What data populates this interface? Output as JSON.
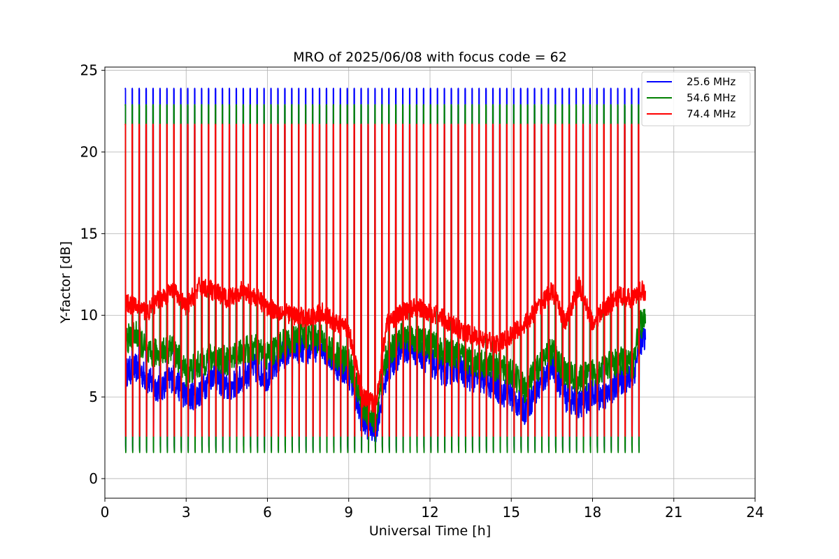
{
  "chart_data": {
    "type": "line",
    "title": "MRO of 2025/06/08 with focus code = 62",
    "xlabel": "Universal Time [h]",
    "ylabel": "Y-factor [dB]",
    "xlim": [
      0,
      24
    ],
    "ylim": [
      -1.2,
      25.2
    ],
    "xticks": [
      0,
      3,
      6,
      9,
      12,
      15,
      18,
      21,
      24
    ],
    "yticks": [
      0,
      5,
      10,
      15,
      20,
      25
    ],
    "grid": true,
    "legend_position": "top-right",
    "cycle_period_h": 0.256,
    "cycle_count": 75,
    "start_h": 0.75,
    "series": [
      {
        "name": "25.6 MHz",
        "color": "#0000ff",
        "peak": 23.9,
        "trough": 1.7,
        "baseline": [
          [
            0.75,
            6.5
          ],
          [
            1.2,
            6.8
          ],
          [
            1.6,
            6.0
          ],
          [
            2.0,
            5.5
          ],
          [
            2.5,
            6.2
          ],
          [
            3.0,
            5.0
          ],
          [
            3.5,
            5.2
          ],
          [
            4.0,
            6.5
          ],
          [
            4.5,
            5.5
          ],
          [
            5.0,
            6.0
          ],
          [
            5.5,
            6.8
          ],
          [
            6.0,
            6.2
          ],
          [
            6.5,
            7.5
          ],
          [
            7.0,
            8.0
          ],
          [
            7.5,
            7.8
          ],
          [
            8.0,
            8.2
          ],
          [
            8.5,
            7.0
          ],
          [
            9.0,
            6.5
          ],
          [
            9.5,
            3.5
          ],
          [
            10.0,
            3.0
          ],
          [
            10.4,
            6.5
          ],
          [
            11.0,
            8.0
          ],
          [
            11.5,
            7.8
          ],
          [
            12.0,
            7.2
          ],
          [
            12.5,
            6.5
          ],
          [
            13.0,
            6.8
          ],
          [
            13.5,
            6.2
          ],
          [
            14.0,
            6.0
          ],
          [
            14.5,
            5.5
          ],
          [
            15.0,
            5.0
          ],
          [
            15.5,
            4.2
          ],
          [
            16.0,
            5.5
          ],
          [
            16.5,
            7.0
          ],
          [
            17.0,
            5.0
          ],
          [
            17.5,
            4.5
          ],
          [
            18.0,
            5.2
          ],
          [
            18.5,
            5.0
          ],
          [
            19.0,
            6.0
          ],
          [
            19.5,
            6.2
          ],
          [
            19.75,
            8.5
          ]
        ]
      },
      {
        "name": "54.6 MHz",
        "color": "#008000",
        "peak": 22.9,
        "trough": 1.6,
        "baseline": [
          [
            0.75,
            8.5
          ],
          [
            1.2,
            8.8
          ],
          [
            1.6,
            7.5
          ],
          [
            2.0,
            7.8
          ],
          [
            2.5,
            8.0
          ],
          [
            3.0,
            6.5
          ],
          [
            3.5,
            7.0
          ],
          [
            4.0,
            7.5
          ],
          [
            4.5,
            7.2
          ],
          [
            5.0,
            7.8
          ],
          [
            5.5,
            8.0
          ],
          [
            6.0,
            7.5
          ],
          [
            6.5,
            8.2
          ],
          [
            7.0,
            8.5
          ],
          [
            7.5,
            8.8
          ],
          [
            8.0,
            8.5
          ],
          [
            8.5,
            7.5
          ],
          [
            9.0,
            7.2
          ],
          [
            9.5,
            4.5
          ],
          [
            10.0,
            3.5
          ],
          [
            10.4,
            7.5
          ],
          [
            11.0,
            8.8
          ],
          [
            11.5,
            8.5
          ],
          [
            12.0,
            8.2
          ],
          [
            12.5,
            7.8
          ],
          [
            13.0,
            7.5
          ],
          [
            13.5,
            7.2
          ],
          [
            14.0,
            7.0
          ],
          [
            14.5,
            6.8
          ],
          [
            15.0,
            6.5
          ],
          [
            15.5,
            5.5
          ],
          [
            16.0,
            6.8
          ],
          [
            16.5,
            7.8
          ],
          [
            17.0,
            6.5
          ],
          [
            17.5,
            6.0
          ],
          [
            18.0,
            6.5
          ],
          [
            18.5,
            6.8
          ],
          [
            19.0,
            7.2
          ],
          [
            19.5,
            7.0
          ],
          [
            19.75,
            9.5
          ]
        ]
      },
      {
        "name": "74.4 MHz",
        "color": "#ff0000",
        "peak": 21.7,
        "trough": 2.6,
        "baseline": [
          [
            0.75,
            10.8
          ],
          [
            1.2,
            10.5
          ],
          [
            1.6,
            10.2
          ],
          [
            2.0,
            11.0
          ],
          [
            2.5,
            11.5
          ],
          [
            3.0,
            10.5
          ],
          [
            3.5,
            11.8
          ],
          [
            4.0,
            11.5
          ],
          [
            4.5,
            11.0
          ],
          [
            5.0,
            11.5
          ],
          [
            5.5,
            11.2
          ],
          [
            6.0,
            10.5
          ],
          [
            6.5,
            10.2
          ],
          [
            7.0,
            10.0
          ],
          [
            7.5,
            9.8
          ],
          [
            8.0,
            10.2
          ],
          [
            8.5,
            9.5
          ],
          [
            9.0,
            9.2
          ],
          [
            9.5,
            5.0
          ],
          [
            10.0,
            4.5
          ],
          [
            10.4,
            9.5
          ],
          [
            11.0,
            10.2
          ],
          [
            11.5,
            10.5
          ],
          [
            12.0,
            10.2
          ],
          [
            12.5,
            9.8
          ],
          [
            13.0,
            9.2
          ],
          [
            13.5,
            8.8
          ],
          [
            14.0,
            8.5
          ],
          [
            14.5,
            8.2
          ],
          [
            15.0,
            8.8
          ],
          [
            15.5,
            9.5
          ],
          [
            16.0,
            10.5
          ],
          [
            16.5,
            11.5
          ],
          [
            17.0,
            9.5
          ],
          [
            17.5,
            11.8
          ],
          [
            18.0,
            9.5
          ],
          [
            18.5,
            10.5
          ],
          [
            19.0,
            11.2
          ],
          [
            19.5,
            11.0
          ],
          [
            19.75,
            11.5
          ]
        ]
      }
    ]
  }
}
